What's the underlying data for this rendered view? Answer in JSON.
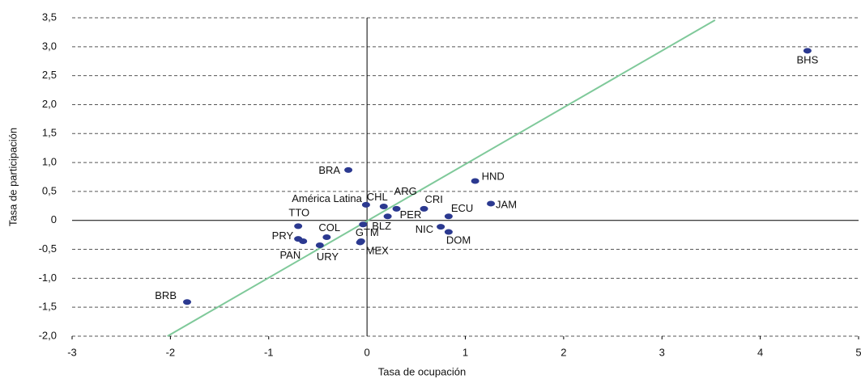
{
  "chart_data": {
    "type": "scatter",
    "x_label": "Tasa de ocupación",
    "y_label": "Tasa de participación",
    "labels": [
      "BHS",
      "HND",
      "JAM",
      "BRA",
      "América Latina",
      "CHL",
      "ARG",
      "CRI",
      "PER",
      "ECU",
      "BLZ",
      "NIC",
      "DOM",
      "TTO",
      "COL",
      "PRY",
      "PAN",
      "URY",
      "GTM",
      "MEX",
      "BRB"
    ],
    "x": [
      4.48,
      1.1,
      1.26,
      -0.19,
      -0.01,
      0.17,
      0.3,
      0.58,
      0.21,
      0.83,
      -0.04,
      0.75,
      0.83,
      -0.7,
      -0.41,
      -0.7,
      -0.65,
      -0.48,
      -0.06,
      -0.07,
      -1.83
    ],
    "y": [
      2.93,
      0.68,
      0.29,
      0.87,
      0.27,
      0.24,
      0.2,
      0.2,
      0.07,
      0.07,
      -0.07,
      -0.11,
      -0.2,
      -0.1,
      -0.29,
      -0.32,
      -0.36,
      -0.43,
      -0.36,
      -0.38,
      -1.41
    ],
    "color": "#2b3990",
    "trendline": {
      "x": [
        -2.03,
        3.54
      ],
      "y": [
        -2.0,
        3.46
      ],
      "color": "#7fc99a"
    },
    "xlim": [
      -3,
      5
    ],
    "ylim": [
      -2,
      3.5
    ],
    "xticks": [
      -3,
      -2,
      -1,
      0,
      1,
      2,
      3,
      4,
      5
    ],
    "yticks": [
      {
        "value": -2,
        "label": "-2,0"
      },
      {
        "value": -1.5,
        "label": "-1,5"
      },
      {
        "value": -1,
        "label": "-1,0"
      },
      {
        "value": -0.5,
        "label": "-0,5"
      },
      {
        "value": 0,
        "label": "0"
      },
      {
        "value": 0.5,
        "label": "0,5"
      },
      {
        "value": 1,
        "label": "1,0"
      },
      {
        "value": 1.5,
        "label": "1,5"
      },
      {
        "value": 2,
        "label": "2,0"
      },
      {
        "value": 2.5,
        "label": "2,5"
      },
      {
        "value": 3,
        "label": "3,0"
      },
      {
        "value": 3.5,
        "label": "3,5"
      }
    ],
    "grid": true
  }
}
